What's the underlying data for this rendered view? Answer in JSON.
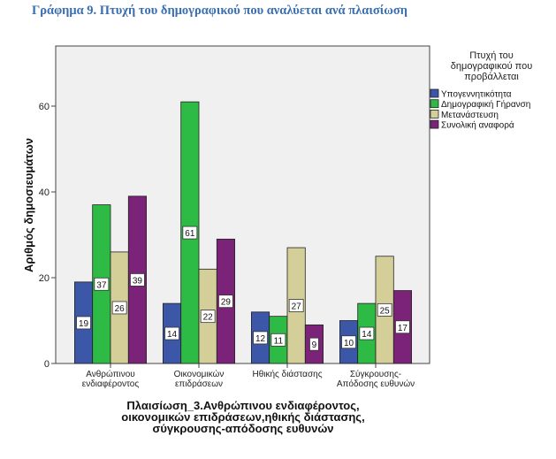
{
  "figure_title": "Γράφημα 9. Πτυχή του δημογραφικού που αναλύεται ανά πλαισίωση",
  "chart_data": {
    "type": "bar",
    "title": "Γράφημα 9. Πτυχή του δημογραφικού που αναλύεται ανά πλαισίωση",
    "categories": [
      [
        "Ανθρώπινου",
        "ενδιαφέροντος"
      ],
      [
        "Οικονομικών",
        "επιδράσεων"
      ],
      [
        "Ηθικής διάστασης"
      ],
      [
        "Σύγκρουσης-",
        "Απόδοσης ευθυνών"
      ]
    ],
    "series": [
      {
        "name": "Υπογεννητικότητα",
        "color": "#3C56A8",
        "values": [
          19,
          14,
          12,
          10
        ]
      },
      {
        "name": "Δημογραφική Γήρανση",
        "color": "#2DBA45",
        "values": [
          37,
          61,
          11,
          14
        ]
      },
      {
        "name": "Μετανάστευση",
        "color": "#D4CF99",
        "values": [
          26,
          22,
          27,
          25
        ]
      },
      {
        "name": "Συνολική αναφορά",
        "color": "#7B2378",
        "values": [
          39,
          29,
          9,
          17
        ]
      }
    ],
    "xlabel": [
      "Πλαισίωση_3.Ανθρώπινου ενδιαφέροντος,",
      "οικονομικών επιδράσεων,ηθικής διάστασης,",
      "σύγκρουσης-απόδοσης ευθυνών"
    ],
    "ylabel": "Αριθμός δημοσιευμάτων",
    "ylim": [
      0,
      75
    ],
    "yticks": [
      0,
      20,
      40,
      60
    ],
    "grid": false,
    "legend": {
      "title": [
        "Πτυχή του",
        "δημογραφικού που",
        "προβάλλεται"
      ],
      "placement": "right"
    },
    "data_labels": true
  }
}
